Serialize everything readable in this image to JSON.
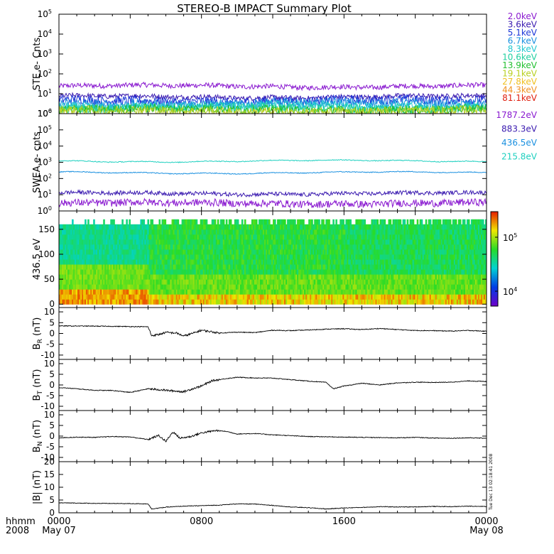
{
  "title": "STEREO-B IMPACT Summary Plot",
  "footer": {
    "row1_label": "hhmm",
    "row2_label": "2008",
    "ticks": [
      {
        "hour": 0,
        "time": "0000",
        "date": "May 07"
      },
      {
        "hour": 8,
        "time": "0800",
        "date": ""
      },
      {
        "hour": 16,
        "time": "1600",
        "date": ""
      },
      {
        "hour": 24,
        "time": "0000",
        "date": "May 08"
      }
    ]
  },
  "side_stamp": "Tue Dec 13 02:18:41 2008",
  "chart_data": [
    {
      "type": "line",
      "name": "STE",
      "ylabel": "STE e- Cnts",
      "yscale": "log",
      "ylim": [
        1,
        100000
      ],
      "yticks": [
        1,
        10,
        100,
        1000,
        10000,
        100000
      ],
      "x_range_hours": [
        0,
        24
      ],
      "series": [
        {
          "name": "2.0keV",
          "color": "#8a1ad0",
          "level": 24
        },
        {
          "name": "3.6keV",
          "color": "#3a1ab0",
          "level": 7
        },
        {
          "name": "5.1keV",
          "color": "#1c36d8",
          "level": 4.5
        },
        {
          "name": "6.7keV",
          "color": "#1a90e0",
          "level": 3.2
        },
        {
          "name": "8.3keV",
          "color": "#20c8d0",
          "level": 2.4
        },
        {
          "name": "10.6keV",
          "color": "#20d0a0",
          "level": 1.9
        },
        {
          "name": "13.9keV",
          "color": "#22c030",
          "level": 1.6
        },
        {
          "name": "19.1keV",
          "color": "#b8d020",
          "level": 1.35
        },
        {
          "name": "27.8keV",
          "color": "#f0c020",
          "level": 0
        },
        {
          "name": "44.3keV",
          "color": "#f09020",
          "level": 0
        },
        {
          "name": "81.1keV",
          "color": "#e02010",
          "level": 0
        }
      ]
    },
    {
      "type": "line",
      "name": "SWEA",
      "ylabel": "SWEA e- cnts",
      "yscale": "log",
      "ylim": [
        1,
        1000000
      ],
      "yticks": [
        1,
        10,
        100,
        1000,
        10000,
        100000,
        1000000
      ],
      "x_range_hours": [
        0,
        24
      ],
      "series": [
        {
          "name": "1787.2eV",
          "color": "#8a1ad0",
          "level": 3
        },
        {
          "name": "883.3eV",
          "color": "#3a1ab0",
          "level": 12
        },
        {
          "name": "436.5eV",
          "color": "#1a90e0",
          "level": 230
        },
        {
          "name": "215.8eV",
          "color": "#20d0c0",
          "level": 1200
        }
      ]
    },
    {
      "type": "heatmap",
      "name": "pitch-angle",
      "ylabel": "436.5 eV",
      "ylim": [
        0,
        180
      ],
      "yticks": [
        0,
        50,
        100,
        150
      ],
      "x_range_hours": [
        0,
        24
      ],
      "colorbar": {
        "scale": "log",
        "ticks": [
          "10",
          "10"
        ],
        "tick_exps": [
          "5",
          "4"
        ],
        "tick_values": [
          100000,
          10000
        ]
      }
    },
    {
      "type": "line",
      "name": "BR",
      "ylabel_main": "B",
      "ylabel_sub": "R",
      "ylabel_unit": " (nT)",
      "ylim": [
        -12,
        12
      ],
      "yticks": [
        -10,
        -5,
        0,
        5,
        10
      ],
      "points": [
        [
          0,
          3.5
        ],
        [
          2,
          3.4
        ],
        [
          4,
          3.2
        ],
        [
          5,
          3.1
        ],
        [
          5.2,
          -1
        ],
        [
          5.6,
          -0.5
        ],
        [
          6,
          0.5
        ],
        [
          6.6,
          0.2
        ],
        [
          7,
          -1.2
        ],
        [
          7.6,
          0.3
        ],
        [
          8,
          1.5
        ],
        [
          9,
          0.2
        ],
        [
          10,
          0.6
        ],
        [
          11,
          0.4
        ],
        [
          12,
          1.5
        ],
        [
          13,
          1.3
        ],
        [
          14,
          1.6
        ],
        [
          15,
          2
        ],
        [
          16,
          2.2
        ],
        [
          17,
          1.8
        ],
        [
          18,
          2.3
        ],
        [
          19,
          1.8
        ],
        [
          20,
          1.4
        ],
        [
          21,
          1.3
        ],
        [
          22,
          1.1
        ],
        [
          23,
          1.4
        ],
        [
          24,
          1
        ]
      ]
    },
    {
      "type": "line",
      "name": "BT",
      "ylabel_main": "B",
      "ylabel_sub": "T",
      "ylabel_unit": " (nT)",
      "ylim": [
        -12,
        12
      ],
      "yticks": [
        -10,
        -5,
        0,
        5,
        10
      ],
      "points": [
        [
          0,
          -1.2
        ],
        [
          1,
          -1.8
        ],
        [
          2,
          -2.5
        ],
        [
          3,
          -2.6
        ],
        [
          4,
          -3.5
        ],
        [
          5,
          -1.8
        ],
        [
          6,
          -2.5
        ],
        [
          7,
          -3.2
        ],
        [
          7.6,
          -1.5
        ],
        [
          8,
          -0.5
        ],
        [
          8.6,
          2
        ],
        [
          9.4,
          3
        ],
        [
          10,
          3.6
        ],
        [
          11,
          3.3
        ],
        [
          12,
          3.2
        ],
        [
          13,
          2.5
        ],
        [
          14,
          1.8
        ],
        [
          15,
          1.2
        ],
        [
          15.4,
          -1.8
        ],
        [
          16,
          -0.5
        ],
        [
          17,
          0.8
        ],
        [
          18,
          0
        ],
        [
          19,
          1
        ],
        [
          20,
          1.3
        ],
        [
          21,
          1.2
        ],
        [
          22,
          1.3
        ],
        [
          23,
          1.9
        ],
        [
          24,
          1.6
        ]
      ]
    },
    {
      "type": "line",
      "name": "BN",
      "ylabel_main": "B",
      "ylabel_sub": "N",
      "ylabel_unit": " (nT)",
      "ylim": [
        -12,
        12
      ],
      "yticks": [
        -10,
        -5,
        0,
        5,
        10
      ],
      "points": [
        [
          0,
          -0.8
        ],
        [
          1,
          -0.5
        ],
        [
          2,
          -0.6
        ],
        [
          3,
          -0.2
        ],
        [
          4,
          -0.4
        ],
        [
          5,
          -1.6
        ],
        [
          5.6,
          0.3
        ],
        [
          6,
          -2.5
        ],
        [
          6.4,
          2
        ],
        [
          6.8,
          -1
        ],
        [
          7.4,
          -0.2
        ],
        [
          8,
          1.5
        ],
        [
          8.8,
          2.6
        ],
        [
          9.4,
          2.2
        ],
        [
          10,
          1
        ],
        [
          11,
          1.2
        ],
        [
          12,
          0.6
        ],
        [
          13,
          0.2
        ],
        [
          14,
          -0.2
        ],
        [
          15,
          -0.3
        ],
        [
          16,
          -0.5
        ],
        [
          17,
          -0.6
        ],
        [
          18,
          -0.7
        ],
        [
          19,
          -0.8
        ],
        [
          20,
          -0.6
        ],
        [
          21,
          -0.9
        ],
        [
          22,
          -1
        ],
        [
          23,
          -0.8
        ],
        [
          24,
          -1
        ]
      ]
    },
    {
      "type": "line",
      "name": "Bmag",
      "ylabel_main": "|B| (nT)",
      "ylabel_sub": "",
      "ylabel_unit": "",
      "ylim": [
        0,
        20
      ],
      "yticks": [
        0,
        5,
        10,
        15,
        20
      ],
      "points": [
        [
          0,
          3.9
        ],
        [
          2,
          3.7
        ],
        [
          4,
          3.6
        ],
        [
          5,
          3.5
        ],
        [
          5.2,
          1.5
        ],
        [
          6,
          2.2
        ],
        [
          7,
          2.6
        ],
        [
          8,
          2.8
        ],
        [
          9,
          3
        ],
        [
          10,
          3.5
        ],
        [
          11,
          3.4
        ],
        [
          12,
          2.9
        ],
        [
          13,
          2.3
        ],
        [
          14,
          2
        ],
        [
          15,
          1.5
        ],
        [
          16,
          1.9
        ],
        [
          17,
          2.1
        ],
        [
          18,
          2.4
        ],
        [
          19,
          2.3
        ],
        [
          20,
          2.3
        ],
        [
          21,
          2.5
        ],
        [
          22,
          2.4
        ],
        [
          23,
          2.6
        ],
        [
          24,
          2.5
        ]
      ]
    }
  ]
}
